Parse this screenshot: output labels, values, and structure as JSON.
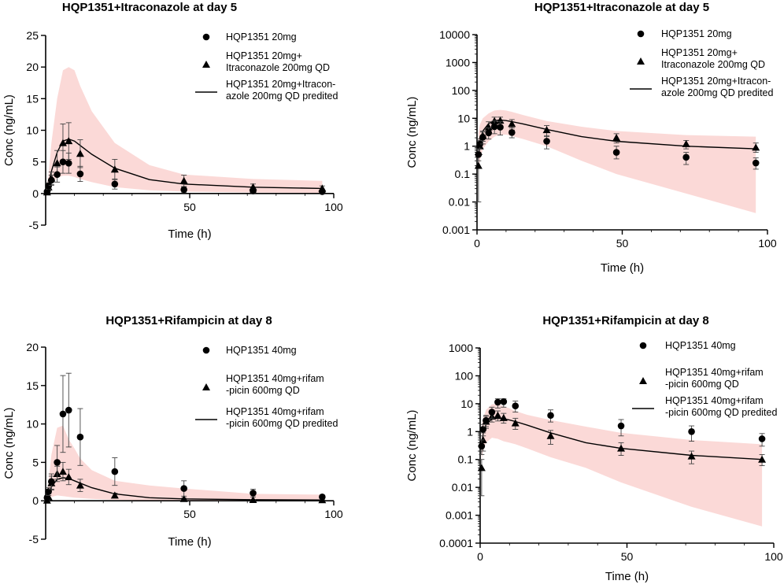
{
  "chart_data": [
    {
      "type": "line",
      "title": "HQP1351+Itraconazole at day 5",
      "xlabel": "Time (h)",
      "ylabel": "Conc (ng/mL)",
      "yscale": "linear",
      "xlim": [
        0,
        100
      ],
      "ylim": [
        -5,
        25
      ],
      "xticks": [
        50,
        100
      ],
      "xtick_labels": [
        "50",
        "100"
      ],
      "yticks": [
        -5,
        0,
        5,
        10,
        15,
        20,
        25
      ],
      "ytick_labels": [
        "-5",
        "0",
        "5",
        "10",
        "15",
        "20",
        "25"
      ],
      "band": {
        "x": [
          0,
          1,
          2,
          4,
          6,
          8,
          10,
          12,
          16,
          24,
          36,
          48,
          72,
          96
        ],
        "upper": [
          0,
          3,
          8,
          15,
          19.5,
          20,
          19.5,
          17,
          13,
          8,
          4.5,
          3,
          2.3,
          2
        ],
        "lower": [
          0,
          0.5,
          1.5,
          2.5,
          2.8,
          2.8,
          2.6,
          2.3,
          1.8,
          1,
          0.5,
          0.3,
          0.15,
          0.1
        ]
      },
      "series": [
        {
          "name": "HQP1351 20mg",
          "marker": "circle",
          "x": [
            0.5,
            1,
            2,
            4,
            6,
            8,
            12,
            24,
            48,
            72,
            96
          ],
          "y": [
            0.3,
            1.2,
            2.1,
            3.0,
            5.0,
            4.8,
            3.1,
            1.5,
            0.6,
            0.4,
            0.3
          ],
          "err": [
            0.2,
            0.5,
            0.8,
            1.2,
            1.8,
            1.6,
            1.2,
            0.8,
            0.4,
            0.3,
            0.2
          ]
        },
        {
          "name": "HQP1351 20mg+ Itraconazole 200mg QD",
          "marker": "triangle",
          "x": [
            0.5,
            1,
            2,
            4,
            6,
            8,
            12,
            24,
            48,
            72,
            96
          ],
          "y": [
            0.2,
            1.0,
            2.4,
            4.8,
            8.0,
            8.3,
            6.3,
            3.8,
            2.0,
            1.0,
            0.8
          ],
          "err": [
            0.2,
            0.6,
            1.0,
            2.0,
            3.0,
            2.9,
            2.2,
            1.6,
            0.9,
            0.5,
            0.4
          ]
        },
        {
          "name": "HQP1351 20mg+Itraconazole 200mg QD predited",
          "marker": "line",
          "x": [
            0,
            1,
            2,
            4,
            6,
            8,
            10,
            12,
            16,
            24,
            36,
            48,
            72,
            96
          ],
          "y": [
            0,
            1.5,
            3.5,
            6.5,
            8.3,
            8.6,
            8.3,
            7.6,
            6.2,
            4.0,
            2.2,
            1.5,
            1.0,
            0.8
          ]
        }
      ],
      "legend_text": [
        [
          "HQP1351 20mg"
        ],
        [
          "HQP1351 20mg+",
          "Itraconazole 200mg QD"
        ],
        [
          "HQP1351 20mg+Itracon-",
          "azole 200mg QD predited"
        ]
      ]
    },
    {
      "type": "line",
      "title": "HQP1351+Itraconazole at day 5",
      "xlabel": "Time (h)",
      "ylabel": "Conc (ng/mL)",
      "yscale": "log",
      "xlim": [
        0,
        100
      ],
      "ylim": [
        0.001,
        10000
      ],
      "xticks": [
        0,
        50,
        100
      ],
      "xtick_labels": [
        "0",
        "50",
        "100"
      ],
      "yticks": [
        0.001,
        0.01,
        0.1,
        1,
        10,
        100,
        1000,
        10000
      ],
      "ytick_labels": [
        "0.001",
        "0.01",
        "0.1",
        "1",
        "10",
        "100",
        "1000",
        "10000"
      ],
      "band": {
        "x": [
          0.5,
          1,
          2,
          4,
          6,
          8,
          10,
          12,
          16,
          24,
          36,
          48,
          72,
          96
        ],
        "upper": [
          3,
          6,
          10,
          15,
          19,
          20,
          19,
          17,
          13,
          8,
          5,
          3.5,
          2.5,
          2.2
        ],
        "lower": [
          0.1,
          0.3,
          0.8,
          1.5,
          2.2,
          2.6,
          2.6,
          2.3,
          1.8,
          1.0,
          0.3,
          0.1,
          0.02,
          0.004
        ]
      },
      "series": [
        {
          "name": "HQP1351 20mg",
          "marker": "circle",
          "x": [
            0.5,
            1,
            2,
            4,
            6,
            8,
            12,
            24,
            48,
            72,
            96
          ],
          "y": [
            0.5,
            1.2,
            2.1,
            3.0,
            5.0,
            4.8,
            3.1,
            1.5,
            0.6,
            0.4,
            0.25
          ],
          "err_lo": [
            0.3,
            0.8,
            1.2,
            1.8,
            2.8,
            2.5,
            2.0,
            0.8,
            0.35,
            0.22,
            0.15
          ],
          "err_hi": [
            0.8,
            1.8,
            3.2,
            4.5,
            8.0,
            7.5,
            4.5,
            2.4,
            1.0,
            0.6,
            0.38
          ]
        },
        {
          "name": "HQP1351 20mg+ Itraconazole 200mg QD",
          "marker": "triangle",
          "x": [
            0.5,
            1,
            2,
            4,
            6,
            8,
            12,
            24,
            48,
            72,
            96
          ],
          "y": [
            0.2,
            1.0,
            2.4,
            4.8,
            8.0,
            8.3,
            6.3,
            3.8,
            2.0,
            1.2,
            0.9
          ],
          "err_lo": [
            0.01,
            0.5,
            1.5,
            2.8,
            4.8,
            5.0,
            3.8,
            2.2,
            1.3,
            0.8,
            0.6
          ],
          "err_hi": [
            0.6,
            1.6,
            3.5,
            7.5,
            11,
            11,
            9,
            5.5,
            2.8,
            1.6,
            1.3
          ]
        },
        {
          "name": "HQP1351 20mg+Itraconazole 200mg QD predited",
          "marker": "line",
          "x": [
            0.5,
            1,
            2,
            4,
            6,
            8,
            10,
            12,
            16,
            24,
            36,
            48,
            72,
            96
          ],
          "y": [
            0.6,
            1.5,
            3.5,
            6.5,
            8.3,
            8.6,
            8.3,
            7.6,
            6.2,
            4.0,
            2.2,
            1.5,
            1.0,
            0.8
          ]
        }
      ],
      "legend_text": [
        [
          "HQP1351 20mg"
        ],
        [
          "HQP1351 20mg+",
          "Itraconazole 200mg QD"
        ],
        [
          "HQP1351 20mg+Itracon-",
          "azole 200mg QD predited"
        ]
      ]
    },
    {
      "type": "line",
      "title": "HQP1351+Rifampicin at day 8",
      "xlabel": "Time (h)",
      "ylabel": "Conc (ng/mL)",
      "yscale": "linear",
      "xlim": [
        0,
        100
      ],
      "ylim": [
        -5,
        20
      ],
      "xticks": [
        50,
        100
      ],
      "xtick_labels": [
        "50",
        "100"
      ],
      "yticks": [
        -5,
        0,
        5,
        10,
        15,
        20
      ],
      "ytick_labels": [
        "-5",
        "0",
        "5",
        "10",
        "15",
        "20"
      ],
      "band": {
        "x": [
          0,
          1,
          2,
          4,
          6,
          8,
          10,
          12,
          16,
          24,
          36,
          48,
          72,
          96
        ],
        "upper": [
          0,
          2.5,
          6,
          9.5,
          9.8,
          8,
          6.8,
          5.5,
          4,
          2.6,
          2,
          1.6,
          0.9,
          0.8
        ],
        "lower": [
          0,
          0.2,
          0.5,
          0.7,
          0.6,
          0.5,
          0.4,
          0.35,
          0.25,
          0.12,
          0.05,
          0.03,
          0.01,
          0.005
        ]
      },
      "series": [
        {
          "name": "HQP1351 40mg",
          "marker": "circle",
          "x": [
            0.5,
            1,
            2,
            4,
            6,
            8,
            12,
            24,
            48,
            72,
            96
          ],
          "y": [
            0.4,
            1.2,
            2.5,
            5.0,
            11.3,
            11.8,
            8.3,
            3.8,
            1.6,
            1.0,
            0.5
          ],
          "err": [
            0.3,
            0.5,
            1.0,
            2.2,
            5.0,
            4.8,
            3.7,
            1.8,
            1.0,
            0.5,
            0.2
          ]
        },
        {
          "name": "HQP1351 40mg+rifampicin 600mg QD",
          "marker": "triangle",
          "x": [
            0.5,
            1,
            2,
            4,
            6,
            8,
            12,
            24,
            48,
            72,
            96
          ],
          "y": [
            0.05,
            0.5,
            2.3,
            3.5,
            3.8,
            3.1,
            2.0,
            0.7,
            0.25,
            0.12,
            0.1
          ],
          "err": [
            0.04,
            0.4,
            0.9,
            1.0,
            1.2,
            1.0,
            0.8,
            0.3,
            0.1,
            0.05,
            0.03
          ]
        },
        {
          "name": "HQP1351 40mg+rifampicin 600mg QD predited",
          "marker": "line",
          "x": [
            0,
            1,
            2,
            4,
            6,
            8,
            10,
            12,
            16,
            24,
            36,
            48,
            72,
            96
          ],
          "y": [
            0,
            0.8,
            1.8,
            2.8,
            3.0,
            2.9,
            2.6,
            2.3,
            1.7,
            0.9,
            0.4,
            0.25,
            0.14,
            0.1
          ]
        }
      ],
      "legend_text": [
        [
          "HQP1351 40mg"
        ],
        [
          "HQP1351 40mg+rifam",
          "-picin 600mg QD"
        ],
        [
          "HQP1351 40mg+rifam",
          "-picin 600mg QD predited"
        ]
      ]
    },
    {
      "type": "line",
      "title": "HQP1351+Rifampicin at day 8",
      "xlabel": "Time (h)",
      "ylabel": "Conc (ng/mL)",
      "yscale": "log",
      "xlim": [
        0,
        100
      ],
      "ylim": [
        0.0001,
        1000
      ],
      "xticks": [
        0,
        50,
        100
      ],
      "xtick_labels": [
        "0",
        "50",
        "100"
      ],
      "yticks": [
        0.0001,
        0.001,
        0.01,
        0.1,
        1,
        10,
        100,
        1000
      ],
      "ytick_labels": [
        "0.0001",
        "0.001",
        "0.01",
        "0.1",
        "1",
        "10",
        "100",
        "1000"
      ],
      "band": {
        "x": [
          0.5,
          1,
          2,
          4,
          6,
          8,
          10,
          12,
          16,
          24,
          36,
          48,
          72,
          96
        ],
        "upper": [
          1.5,
          3,
          6,
          9.5,
          9.8,
          8,
          6.8,
          5.5,
          4,
          2.6,
          1.5,
          0.9,
          0.5,
          0.35
        ],
        "lower": [
          0.1,
          0.2,
          0.4,
          0.6,
          0.55,
          0.45,
          0.4,
          0.35,
          0.25,
          0.12,
          0.05,
          0.015,
          0.002,
          0.0004
        ]
      },
      "series": [
        {
          "name": "HQP1351 40mg",
          "marker": "circle",
          "x": [
            0.5,
            1,
            2,
            4,
            6,
            8,
            12,
            24,
            48,
            72,
            96
          ],
          "y": [
            0.3,
            1.2,
            2.5,
            5.0,
            11.3,
            11.8,
            8.3,
            3.8,
            1.6,
            1.0,
            0.55
          ],
          "err_lo": [
            0.15,
            0.7,
            1.5,
            3.0,
            7.0,
            7.5,
            5.0,
            2.2,
            0.7,
            0.45,
            0.3
          ],
          "err_hi": [
            0.5,
            1.8,
            3.8,
            7.5,
            15,
            15,
            12.5,
            6.0,
            2.7,
            1.6,
            0.85
          ]
        },
        {
          "name": "HQP1351 40mg+rifampicin 600mg QD",
          "marker": "triangle",
          "x": [
            0.5,
            1,
            2,
            4,
            6,
            8,
            12,
            24,
            48,
            72,
            96
          ],
          "y": [
            0.05,
            0.5,
            2.3,
            3.5,
            3.8,
            3.1,
            2.0,
            0.7,
            0.25,
            0.13,
            0.1
          ],
          "err_lo": [
            0.005,
            0.2,
            1.3,
            2.2,
            2.4,
            2.0,
            1.2,
            0.35,
            0.14,
            0.07,
            0.06
          ],
          "err_hi": [
            0.1,
            0.9,
            3.5,
            5.0,
            5.5,
            4.5,
            3.0,
            1.1,
            0.4,
            0.2,
            0.15
          ]
        },
        {
          "name": "HQP1351 40mg+rifampicin 600mg QD predited",
          "marker": "line",
          "x": [
            0.5,
            1,
            2,
            4,
            6,
            8,
            10,
            12,
            16,
            24,
            36,
            48,
            72,
            96
          ],
          "y": [
            0.3,
            0.8,
            1.8,
            2.8,
            3.0,
            2.9,
            2.6,
            2.3,
            1.7,
            0.9,
            0.4,
            0.25,
            0.14,
            0.1
          ]
        }
      ],
      "legend_text": [
        [
          "HQP1351 40mg"
        ],
        [
          "HQP1351 40mg+rifam",
          "-picin 600mg QD"
        ],
        [
          "HQP1351 40mg+rifam",
          "-picin 600mg QD predited"
        ]
      ]
    }
  ]
}
